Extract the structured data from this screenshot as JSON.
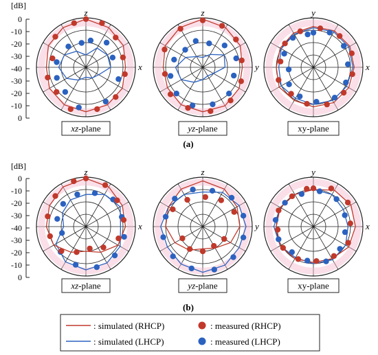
{
  "figure": {
    "db_unit": "[dB]",
    "db_ticks": [
      "0",
      "-10",
      "-20",
      "-30",
      "-40",
      "-30",
      "-20",
      "-10",
      "0"
    ],
    "colors": {
      "rhcp": "#c0392b",
      "lhcp": "#2b62c0",
      "grid": "#222222",
      "glow": "#f3b8cf"
    }
  },
  "rows": [
    {
      "label": "(a)"
    },
    {
      "label": "(b)"
    }
  ],
  "legend": {
    "sim_rhcp": ": simulated (RHCP)",
    "sim_lhcp": ": simulated (LHCP)",
    "meas_rhcp": ": measured (RHCP)",
    "meas_lhcp": ": measured (LHCP)"
  },
  "chart_data": [
    {
      "type": "polar",
      "row": "a",
      "plane_italic": "xz",
      "plane_rest": "-plane",
      "top_axis": "z",
      "right_axis": "x",
      "range_db": [
        -40,
        0
      ],
      "sim_rhcp": [
        [
          0,
          -1
        ],
        [
          30,
          -3
        ],
        [
          60,
          -5
        ],
        [
          90,
          -8
        ],
        [
          120,
          -6
        ],
        [
          150,
          -5
        ],
        [
          180,
          -4
        ],
        [
          210,
          -5
        ],
        [
          240,
          -6
        ],
        [
          270,
          -8
        ],
        [
          300,
          -5
        ],
        [
          330,
          -3
        ]
      ],
      "sim_lhcp": [
        [
          0,
          -30
        ],
        [
          30,
          -22
        ],
        [
          60,
          -20
        ],
        [
          90,
          -20
        ],
        [
          120,
          -28
        ],
        [
          150,
          -30
        ],
        [
          180,
          -32
        ],
        [
          210,
          -28
        ],
        [
          240,
          -22
        ],
        [
          270,
          -18
        ],
        [
          300,
          -20
        ],
        [
          330,
          -25
        ]
      ],
      "meas_rhcp": [
        [
          0,
          -1
        ],
        [
          20,
          -2
        ],
        [
          45,
          -6
        ],
        [
          75,
          -9
        ],
        [
          100,
          -8
        ],
        [
          135,
          -6
        ],
        [
          165,
          -5
        ],
        [
          200,
          -4
        ],
        [
          230,
          -9
        ],
        [
          255,
          -8
        ],
        [
          285,
          -12
        ],
        [
          315,
          -5
        ],
        [
          345,
          -3
        ]
      ],
      "meas_lhcp": [
        [
          10,
          -18
        ],
        [
          40,
          -14
        ],
        [
          70,
          -17
        ],
        [
          110,
          -12
        ],
        [
          150,
          -8
        ],
        [
          190,
          -7
        ],
        [
          220,
          -14
        ],
        [
          250,
          -15
        ],
        [
          280,
          -16
        ],
        [
          320,
          -18
        ],
        [
          350,
          -20
        ]
      ]
    },
    {
      "type": "polar",
      "row": "a",
      "plane_italic": "yz",
      "plane_rest": "-plane",
      "top_axis": "z",
      "right_axis": "y",
      "range_db": [
        -40,
        0
      ],
      "sim_rhcp": [
        [
          0,
          -1
        ],
        [
          30,
          -3
        ],
        [
          60,
          -5
        ],
        [
          90,
          -8
        ],
        [
          120,
          -6
        ],
        [
          150,
          -4
        ],
        [
          180,
          -4
        ],
        [
          210,
          -5
        ],
        [
          240,
          -7
        ],
        [
          270,
          -8
        ],
        [
          300,
          -5
        ],
        [
          330,
          -3
        ]
      ],
      "sim_lhcp": [
        [
          0,
          -32
        ],
        [
          30,
          -28
        ],
        [
          60,
          -20
        ],
        [
          90,
          -22
        ],
        [
          120,
          -30
        ],
        [
          150,
          -32
        ],
        [
          180,
          -30
        ],
        [
          210,
          -26
        ],
        [
          240,
          -20
        ],
        [
          270,
          -18
        ],
        [
          300,
          -24
        ],
        [
          330,
          -30
        ]
      ],
      "meas_rhcp": [
        [
          0,
          -2
        ],
        [
          25,
          -3
        ],
        [
          50,
          -5
        ],
        [
          80,
          -8
        ],
        [
          110,
          -7
        ],
        [
          140,
          -5
        ],
        [
          170,
          -4
        ],
        [
          200,
          -5
        ],
        [
          230,
          -6
        ],
        [
          260,
          -9
        ],
        [
          295,
          -6
        ],
        [
          330,
          -4
        ]
      ],
      "meas_lhcp": [
        [
          15,
          -20
        ],
        [
          45,
          -15
        ],
        [
          75,
          -12
        ],
        [
          105,
          -14
        ],
        [
          135,
          -10
        ],
        [
          165,
          -9
        ],
        [
          195,
          -8
        ],
        [
          225,
          -10
        ],
        [
          255,
          -13
        ],
        [
          285,
          -16
        ],
        [
          315,
          -20
        ],
        [
          345,
          -18
        ]
      ]
    },
    {
      "type": "polar",
      "row": "a",
      "plane_italic": "",
      "plane_rest": "xy-plane",
      "top_axis": "y",
      "right_axis": "x",
      "range_db": [
        -40,
        0
      ],
      "sim_rhcp": [
        [
          0,
          -7
        ],
        [
          30,
          -6
        ],
        [
          60,
          -6
        ],
        [
          90,
          -7
        ],
        [
          120,
          -7
        ],
        [
          150,
          -7
        ],
        [
          180,
          -8
        ],
        [
          210,
          -9
        ],
        [
          240,
          -8
        ],
        [
          270,
          -10
        ],
        [
          300,
          -9
        ],
        [
          330,
          -8
        ]
      ],
      "sim_lhcp": [
        [
          0,
          -8
        ],
        [
          30,
          -7
        ],
        [
          60,
          -7
        ],
        [
          90,
          -8
        ],
        [
          120,
          -9
        ],
        [
          150,
          -9
        ],
        [
          180,
          -10
        ],
        [
          210,
          -11
        ],
        [
          240,
          -10
        ],
        [
          270,
          -12
        ],
        [
          300,
          -10
        ],
        [
          330,
          -9
        ]
      ],
      "meas_rhcp": [
        [
          10,
          -8
        ],
        [
          40,
          -7
        ],
        [
          70,
          -7
        ],
        [
          100,
          -8
        ],
        [
          130,
          -8
        ],
        [
          160,
          -8
        ],
        [
          190,
          -10
        ],
        [
          220,
          -12
        ],
        [
          250,
          -10
        ],
        [
          280,
          -13
        ],
        [
          310,
          -10
        ],
        [
          340,
          -9
        ]
      ],
      "meas_lhcp": [
        [
          0,
          -12
        ],
        [
          25,
          -9
        ],
        [
          55,
          -10
        ],
        [
          85,
          -12
        ],
        [
          115,
          -11
        ],
        [
          145,
          -10
        ],
        [
          175,
          -12
        ],
        [
          205,
          -14
        ],
        [
          235,
          -16
        ],
        [
          265,
          -20
        ],
        [
          295,
          -14
        ],
        [
          325,
          -11
        ],
        [
          350,
          -13
        ]
      ]
    },
    {
      "type": "polar",
      "row": "b",
      "plane_italic": "xz",
      "plane_rest": "-plane",
      "top_axis": "z",
      "right_axis": "x",
      "range_db": [
        -40,
        0
      ],
      "sim_rhcp": [
        [
          0,
          -1
        ],
        [
          30,
          -3
        ],
        [
          60,
          -6
        ],
        [
          90,
          -8
        ],
        [
          120,
          -10
        ],
        [
          150,
          -16
        ],
        [
          180,
          -20
        ],
        [
          210,
          -16
        ],
        [
          240,
          -10
        ],
        [
          270,
          -8
        ],
        [
          300,
          -6
        ],
        [
          330,
          -3
        ]
      ],
      "sim_lhcp": [
        [
          0,
          -14
        ],
        [
          30,
          -10
        ],
        [
          60,
          -8
        ],
        [
          90,
          -12
        ],
        [
          120,
          -8
        ],
        [
          150,
          -6
        ],
        [
          180,
          -5
        ],
        [
          210,
          -7
        ],
        [
          240,
          -12
        ],
        [
          270,
          -22
        ],
        [
          300,
          -18
        ],
        [
          330,
          -15
        ]
      ],
      "meas_rhcp": [
        [
          0,
          -1
        ],
        [
          25,
          -3
        ],
        [
          50,
          -7
        ],
        [
          80,
          -9
        ],
        [
          110,
          -12
        ],
        [
          140,
          -18
        ],
        [
          170,
          -22
        ],
        [
          200,
          -18
        ],
        [
          225,
          -12
        ],
        [
          255,
          -10
        ],
        [
          285,
          -8
        ],
        [
          315,
          -5
        ],
        [
          345,
          -2
        ]
      ],
      "meas_lhcp": [
        [
          15,
          -12
        ],
        [
          45,
          -9
        ],
        [
          75,
          -10
        ],
        [
          105,
          -8
        ],
        [
          135,
          -7
        ],
        [
          165,
          -6
        ],
        [
          195,
          -8
        ],
        [
          225,
          -11
        ],
        [
          255,
          -20
        ],
        [
          285,
          -16
        ],
        [
          315,
          -14
        ],
        [
          345,
          -13
        ]
      ]
    },
    {
      "type": "polar",
      "row": "b",
      "plane_italic": "yz",
      "plane_rest": "-plane",
      "top_axis": "z",
      "right_axis": "y",
      "range_db": [
        -40,
        0
      ],
      "sim_rhcp": [
        [
          0,
          -3
        ],
        [
          30,
          -5
        ],
        [
          60,
          -8
        ],
        [
          90,
          -10
        ],
        [
          120,
          -14
        ],
        [
          150,
          -20
        ],
        [
          180,
          -22
        ],
        [
          210,
          -18
        ],
        [
          240,
          -14
        ],
        [
          270,
          -10
        ],
        [
          300,
          -8
        ],
        [
          330,
          -5
        ]
      ],
      "sim_lhcp": [
        [
          0,
          -12
        ],
        [
          30,
          -8
        ],
        [
          60,
          -6
        ],
        [
          90,
          -5
        ],
        [
          120,
          -6
        ],
        [
          150,
          -4
        ],
        [
          180,
          -3
        ],
        [
          210,
          -5
        ],
        [
          240,
          -7
        ],
        [
          270,
          -6
        ],
        [
          300,
          -8
        ],
        [
          330,
          -10
        ]
      ],
      "meas_rhcp": [
        [
          5,
          -16
        ],
        [
          35,
          -14
        ],
        [
          65,
          -12
        ],
        [
          120,
          -20
        ],
        [
          150,
          -22
        ],
        [
          180,
          -20
        ],
        [
          210,
          -19
        ],
        [
          240,
          -21
        ],
        [
          300,
          -12
        ],
        [
          330,
          -15
        ]
      ],
      "meas_lhcp": [
        [
          15,
          -10
        ],
        [
          45,
          -7
        ],
        [
          75,
          -6
        ],
        [
          105,
          -6
        ],
        [
          135,
          -5
        ],
        [
          165,
          -4
        ],
        [
          195,
          -5
        ],
        [
          225,
          -6
        ],
        [
          255,
          -7
        ],
        [
          285,
          -9
        ],
        [
          315,
          -8
        ],
        [
          345,
          -9
        ]
      ]
    },
    {
      "type": "polar",
      "row": "b",
      "plane_italic": "",
      "plane_rest": "xy-plane",
      "top_axis": "y",
      "right_axis": "x",
      "range_db": [
        -40,
        0
      ],
      "sim_rhcp": [
        [
          0,
          -10
        ],
        [
          30,
          -6
        ],
        [
          60,
          -5
        ],
        [
          90,
          -6
        ],
        [
          120,
          -7
        ],
        [
          150,
          -10
        ],
        [
          180,
          -11
        ],
        [
          210,
          -10
        ],
        [
          240,
          -9
        ],
        [
          270,
          -10
        ],
        [
          300,
          -9
        ],
        [
          330,
          -10
        ]
      ],
      "sim_lhcp": [
        [
          0,
          -10
        ],
        [
          30,
          -10
        ],
        [
          60,
          -12
        ],
        [
          90,
          -12
        ],
        [
          120,
          -10
        ],
        [
          150,
          -9
        ],
        [
          180,
          -10
        ],
        [
          210,
          -11
        ],
        [
          240,
          -9
        ],
        [
          270,
          -8
        ],
        [
          300,
          -9
        ],
        [
          330,
          -10
        ]
      ],
      "meas_rhcp": [
        [
          0,
          -9
        ],
        [
          25,
          -6
        ],
        [
          55,
          -6
        ],
        [
          85,
          -10
        ],
        [
          115,
          -9
        ],
        [
          145,
          -11
        ],
        [
          175,
          -12
        ],
        [
          205,
          -11
        ],
        [
          235,
          -10
        ],
        [
          265,
          -11
        ],
        [
          295,
          -9
        ],
        [
          325,
          -10
        ],
        [
          350,
          -9
        ]
      ],
      "meas_lhcp": [
        [
          10,
          -11
        ],
        [
          40,
          -11
        ],
        [
          70,
          -13
        ],
        [
          100,
          -14
        ],
        [
          130,
          -12
        ],
        [
          160,
          -10
        ],
        [
          190,
          -12
        ],
        [
          220,
          -13
        ],
        [
          250,
          -10
        ],
        [
          280,
          -9
        ],
        [
          310,
          -10
        ],
        [
          340,
          -12
        ]
      ]
    }
  ]
}
